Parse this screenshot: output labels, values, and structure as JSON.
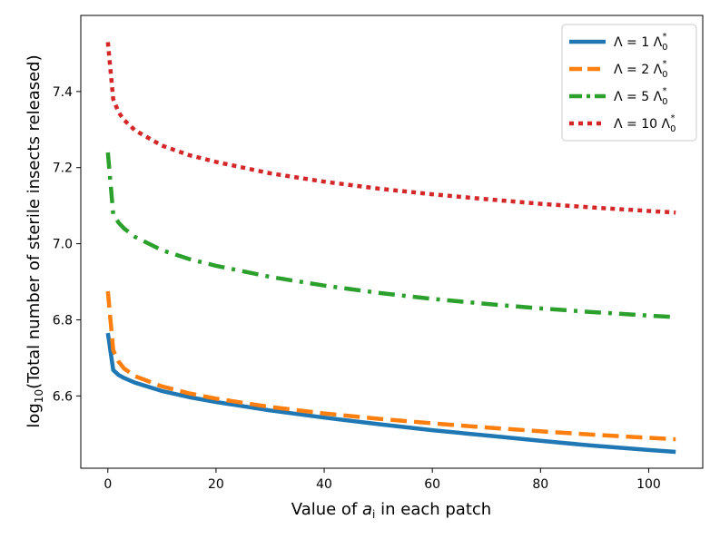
{
  "chart_data": {
    "type": "line",
    "xlabel": "Value of a_i in each patch",
    "xlabel_parts": {
      "before": "Value of ",
      "var": "a",
      "sub": "i",
      "after": " in each patch"
    },
    "ylabel": "log10(Total number of sterile insects released)",
    "ylabel_parts": {
      "log": "log",
      "sub": "10",
      "rest": "(Total number of sterile insects released)"
    },
    "xlim": [
      -5,
      110
    ],
    "ylim": [
      6.41,
      7.6
    ],
    "xticks": [
      0,
      20,
      40,
      60,
      80,
      100
    ],
    "yticks": [
      6.6,
      6.8,
      7.0,
      7.2,
      7.4
    ],
    "ytick_labels": [
      "6.6",
      "6.8",
      "7.0",
      "7.2",
      "7.4"
    ],
    "grid": false,
    "legend_position": "top-right",
    "series": [
      {
        "name": "Λ = 1 Λ0*",
        "legend": {
          "lhs": "Λ = 1 Λ",
          "sub": "0",
          "sup": "*"
        },
        "color": "#1f77b4",
        "style": "solid",
        "x": [
          0,
          1,
          2,
          3,
          5,
          10,
          15,
          20,
          30,
          40,
          50,
          60,
          70,
          80,
          90,
          100,
          105
        ],
        "y": [
          6.765,
          6.668,
          6.655,
          6.647,
          6.635,
          6.613,
          6.597,
          6.584,
          6.562,
          6.543,
          6.526,
          6.51,
          6.496,
          6.482,
          6.469,
          6.458,
          6.453
        ]
      },
      {
        "name": "Λ = 2 Λ0*",
        "legend": {
          "lhs": "Λ = 2 Λ",
          "sub": "0",
          "sup": "*"
        },
        "color": "#ff7f0e",
        "style": "dashed",
        "x": [
          0,
          1,
          2,
          3,
          5,
          10,
          15,
          20,
          30,
          40,
          50,
          60,
          70,
          80,
          90,
          100,
          105
        ],
        "y": [
          6.875,
          6.72,
          6.69,
          6.672,
          6.652,
          6.625,
          6.607,
          6.593,
          6.571,
          6.554,
          6.54,
          6.528,
          6.517,
          6.507,
          6.498,
          6.49,
          6.486
        ]
      },
      {
        "name": "Λ = 5 Λ0*",
        "legend": {
          "lhs": "Λ = 5 Λ",
          "sub": "0",
          "sup": "*"
        },
        "color": "#2ca02c",
        "style": "dashdot",
        "x": [
          0,
          1,
          2,
          3,
          5,
          10,
          15,
          20,
          30,
          40,
          50,
          60,
          70,
          80,
          90,
          100,
          105
        ],
        "y": [
          7.24,
          7.078,
          7.055,
          7.04,
          7.018,
          6.983,
          6.96,
          6.942,
          6.913,
          6.89,
          6.871,
          6.855,
          6.842,
          6.83,
          6.82,
          6.811,
          6.807
        ]
      },
      {
        "name": "Λ = 10 Λ0*",
        "legend": {
          "lhs": "Λ = 10 Λ",
          "sub": "0",
          "sup": "*"
        },
        "color": "#d62728",
        "style": "dotted",
        "x": [
          0,
          1,
          2,
          3,
          5,
          10,
          15,
          20,
          30,
          40,
          50,
          60,
          70,
          80,
          90,
          100,
          105
        ],
        "y": [
          7.53,
          7.38,
          7.345,
          7.325,
          7.298,
          7.258,
          7.233,
          7.215,
          7.185,
          7.163,
          7.145,
          7.13,
          7.117,
          7.105,
          7.095,
          7.086,
          7.082
        ]
      }
    ]
  }
}
